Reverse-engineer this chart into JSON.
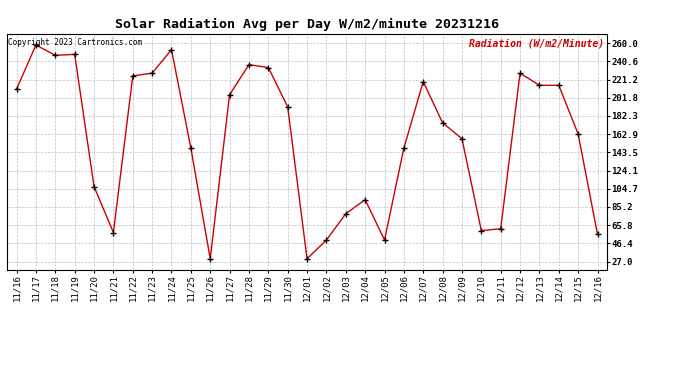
{
  "title": "Solar Radiation Avg per Day W/m2/minute 20231216",
  "copyright_text": "Copyright 2023 Cartronics.com",
  "ylabel": "Radiation (W/m2/Minute)",
  "x_labels": [
    "11/16",
    "11/17",
    "11/18",
    "11/19",
    "11/20",
    "11/21",
    "11/22",
    "11/23",
    "11/24",
    "11/25",
    "11/26",
    "11/27",
    "11/28",
    "11/29",
    "11/30",
    "12/01",
    "12/02",
    "12/03",
    "12/04",
    "12/05",
    "12/06",
    "12/07",
    "12/08",
    "12/09",
    "12/10",
    "12/11",
    "12/12",
    "12/13",
    "12/14",
    "12/15",
    "12/16"
  ],
  "y_values": [
    211.0,
    258.0,
    247.0,
    248.0,
    107.0,
    58.0,
    225.0,
    228.0,
    253.0,
    148.0,
    30.0,
    205.0,
    237.0,
    234.0,
    192.0,
    30.0,
    50.0,
    78.0,
    93.0,
    50.0,
    148.0,
    219.0,
    175.0,
    158.0,
    60.0,
    62.0,
    228.0,
    215.0,
    215.0,
    163.0,
    56.0
  ],
  "line_color": "#cc0000",
  "marker_color": "#000000",
  "ylabel_color": "#cc0000",
  "copyright_color": "#000000",
  "title_color": "#000000",
  "bg_color": "#ffffff",
  "grid_color": "#c0c0c0",
  "yticks": [
    27.0,
    46.4,
    65.8,
    85.2,
    104.7,
    124.1,
    143.5,
    162.9,
    182.3,
    201.8,
    221.2,
    240.6,
    260.0
  ],
  "ylim": [
    18.0,
    270.0
  ],
  "figsize": [
    6.9,
    3.75
  ],
  "dpi": 100
}
